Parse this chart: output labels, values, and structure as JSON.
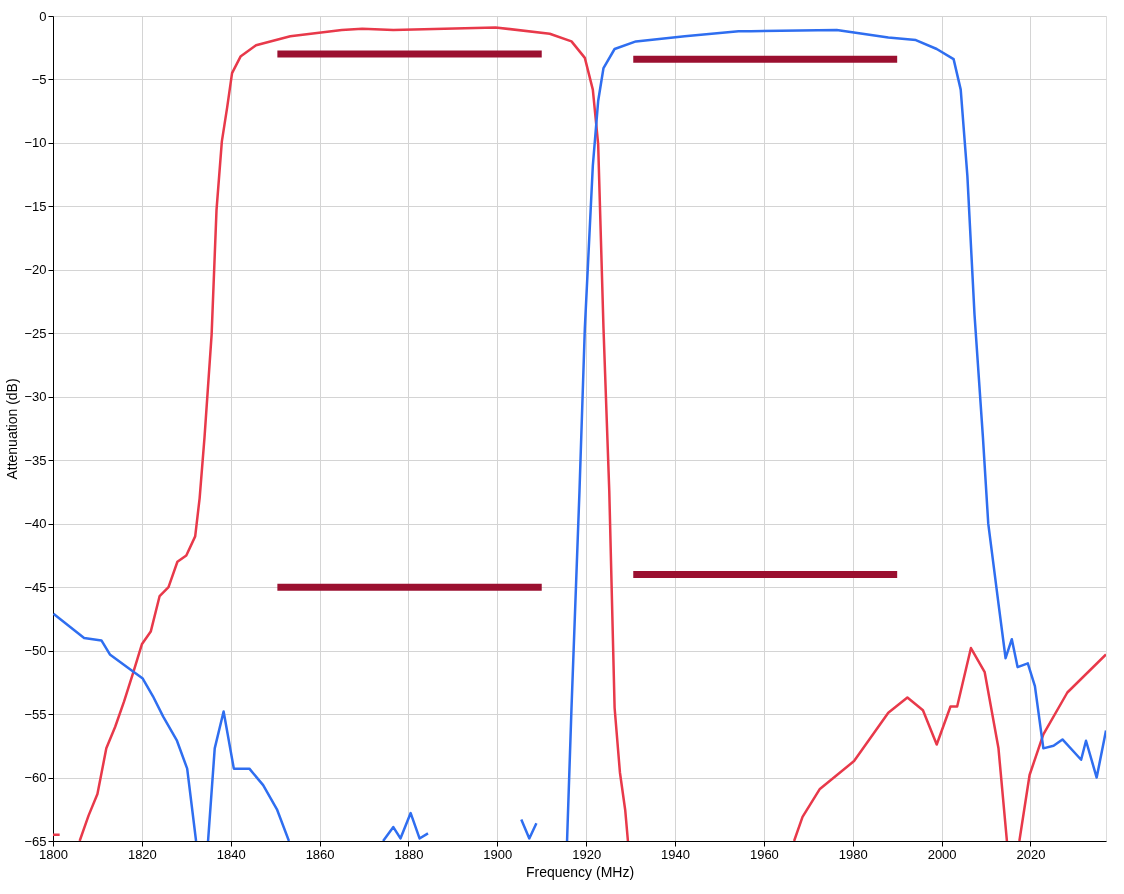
{
  "chart_data": {
    "type": "line",
    "xlabel": "Frequency (MHz)",
    "ylabel": "Attenuation (dB)",
    "xlim": [
      1800,
      2037
    ],
    "xticks": [
      1800,
      1820,
      1840,
      1860,
      1880,
      1900,
      1920,
      1940,
      1960,
      1980,
      2000,
      2020
    ],
    "ylim": [
      -65,
      0
    ],
    "yticks": [
      0,
      -5,
      -10,
      -15,
      -20,
      -25,
      -30,
      -35,
      -40,
      -45,
      -50,
      -55,
      -60,
      -65
    ],
    "grid": true,
    "series": [
      {
        "color": "#e8394a",
        "x": [
          1800,
          1801.5,
          1803,
          1806,
          1808,
          1810,
          1812,
          1814,
          1816,
          1818,
          1820,
          1822,
          1824,
          1826,
          1828,
          1830,
          1832,
          1833,
          1834.1,
          1835.7,
          1836.8,
          1838.0,
          1839.2,
          1840.3,
          1842.2,
          1845.7,
          1853.4,
          1865.0,
          1869.6,
          1876.6,
          1899.6,
          1911.8,
          1916.7,
          1919.7,
          1921.5,
          1922.7,
          1923.9,
          1925.2,
          1926.4,
          1927.6,
          1928.8,
          1929.4,
          1945,
          1966.8,
          1968.7,
          1972.6,
          1980.3,
          1988.0,
          1992.3,
          1995.8,
          1998.9,
          2002.0,
          2003.5,
          2006.6,
          2009.7,
          2012.8,
          2014.7,
          2016,
          2017.5,
          2019.8,
          2022.9,
          2028.3,
          2037.0
        ],
        "values": [
          -64.5,
          -64.5,
          null,
          -65,
          -63,
          -61.3,
          -57.7,
          -56,
          -54,
          -51.8,
          -49.5,
          -48.5,
          -45.7,
          -45,
          -43,
          -42.5,
          -41,
          -38,
          -33.2,
          -25.1,
          -15.3,
          -9.9,
          -7.2,
          -4.5,
          -3.2,
          -2.3,
          -1.6,
          -1.1,
          -1.0,
          -1.1,
          -0.9,
          -1.4,
          -2.0,
          -3.3,
          -5.8,
          -10.1,
          -24.6,
          -37.4,
          -54.5,
          -59.6,
          -62.6,
          -65,
          null,
          -65,
          -63.1,
          -60.9,
          -58.7,
          -54.9,
          -53.7,
          -54.7,
          -57.4,
          -54.4,
          -54.4,
          -49.8,
          -51.7,
          -57.7,
          -65,
          null,
          -65,
          -59.8,
          -56.6,
          -53.3,
          -50.3
        ]
      },
      {
        "color": "#2f6ef0",
        "x": [
          1800.1,
          1807.0,
          1810.9,
          1812.8,
          1817.1,
          1820.2,
          1822.5,
          1824.8,
          1827.9,
          1830.2,
          1832.2,
          1833.5,
          1834.9,
          1836.4,
          1838.4,
          1840.7,
          1844.2,
          1847.3,
          1850.4,
          1853.1,
          1864,
          1874.3,
          1876.6,
          1878.2,
          1880.5,
          1882.5,
          1884.4,
          1895,
          1905.4,
          1907.2,
          1908.8,
          1912,
          1915.7,
          1916.7,
          1918.5,
          1919.7,
          1921.5,
          1922.7,
          1923.9,
          1926.4,
          1931.2,
          1942.2,
          1954.3,
          1957.1,
          1976.4,
          1988.0,
          1994.2,
          1998.9,
          2002.7,
          2004.3,
          2005.8,
          2007.4,
          2009.3,
          2010.5,
          2012.8,
          2014.4,
          2015.8,
          2017.1,
          2019.4,
          2021.0,
          2022.9,
          2025.2,
          2027.2,
          2031.4,
          2032.5,
          2034.9,
          2037.0
        ],
        "values": [
          -47.1,
          -49.0,
          -49.2,
          -50.3,
          -51.4,
          -52.2,
          -53.6,
          -55.2,
          -57.1,
          -59.3,
          -65,
          null,
          -65,
          -57.7,
          -54.8,
          -59.3,
          -59.3,
          -60.6,
          -62.5,
          -65,
          null,
          -65,
          -63.9,
          -64.8,
          -62.8,
          -64.8,
          -64.4,
          null,
          -63.3,
          -64.8,
          -63.6,
          null,
          -65,
          -54.5,
          -37.4,
          -24.6,
          -11.8,
          -6.7,
          -4.1,
          -2.6,
          -2.0,
          -1.6,
          -1.2,
          -1.2,
          -1.1,
          -1.7,
          -1.9,
          -2.6,
          -3.4,
          -5.8,
          -12.6,
          -23.5,
          -33.2,
          -40.0,
          -46.3,
          -50.6,
          -49.1,
          -51.3,
          -51.0,
          -52.8,
          -57.7,
          -57.5,
          -57.0,
          -58.6,
          -57.1,
          -60.0,
          -56.3
        ]
      },
      {
        "color": "#9b1030",
        "x": [
          1850.5,
          1910
        ],
        "values": [
          -3.0,
          -3.0
        ]
      },
      {
        "color": "#9b1030",
        "x": [
          1850.5,
          1910
        ],
        "values": [
          -45.0,
          -45.0
        ]
      },
      {
        "color": "#9b1030",
        "x": [
          1930.6,
          1990
        ],
        "values": [
          -3.4,
          -3.4
        ]
      },
      {
        "color": "#9b1030",
        "x": [
          1930.6,
          1990
        ],
        "values": [
          -44.0,
          -44.0
        ]
      }
    ]
  }
}
